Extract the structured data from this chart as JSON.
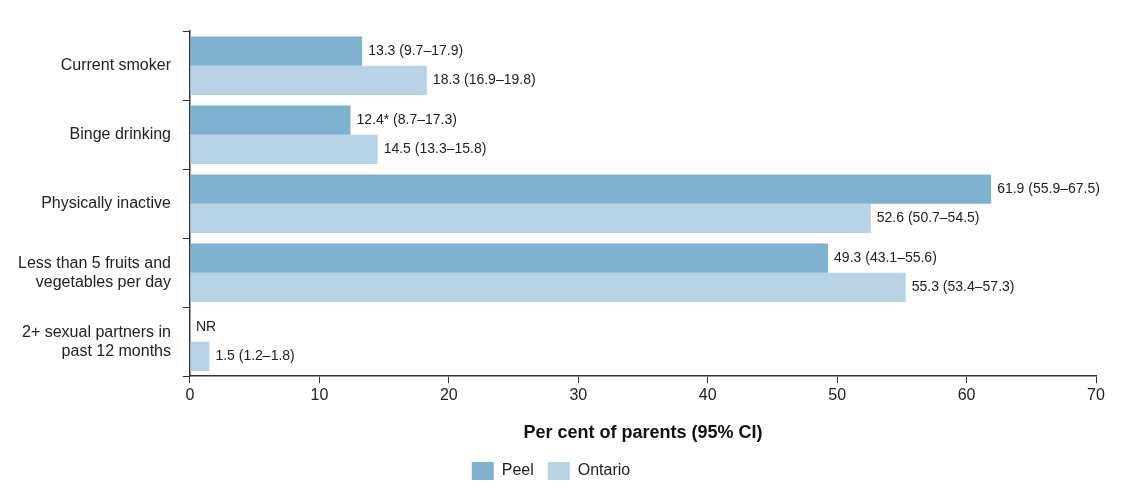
{
  "chart_data": {
    "type": "bar",
    "orientation": "horizontal",
    "categories": [
      "Current smoker",
      "Binge drinking",
      "Physically inactive",
      "Less than 5 fruits and vegetables per day",
      "2+ sexual partners in past 12 months"
    ],
    "series": [
      {
        "name": "Peel",
        "color": "#7fb2d0",
        "values": [
          13.3,
          12.4,
          61.9,
          49.3,
          null
        ],
        "value_labels": [
          "13.3 (9.7–17.9)",
          "12.4* (8.7–17.3)",
          "61.9 (55.9–67.5)",
          "49.3 (43.1–55.6)",
          "NR"
        ]
      },
      {
        "name": "Ontario",
        "color": "#b9d3e6",
        "values": [
          18.3,
          14.5,
          52.6,
          55.3,
          1.5
        ],
        "value_labels": [
          "18.3 (16.9–19.8)",
          "14.5 (13.3–15.8)",
          "52.6 (50.7–54.5)",
          "55.3 (53.4–57.3)",
          "1.5 (1.2–1.8)"
        ]
      }
    ],
    "xlim": [
      0,
      70
    ],
    "xticks": [
      0,
      10,
      20,
      30,
      40,
      50,
      60,
      70
    ],
    "xlabel": "Per cent of parents (95% CI)",
    "legend": "bottom"
  }
}
